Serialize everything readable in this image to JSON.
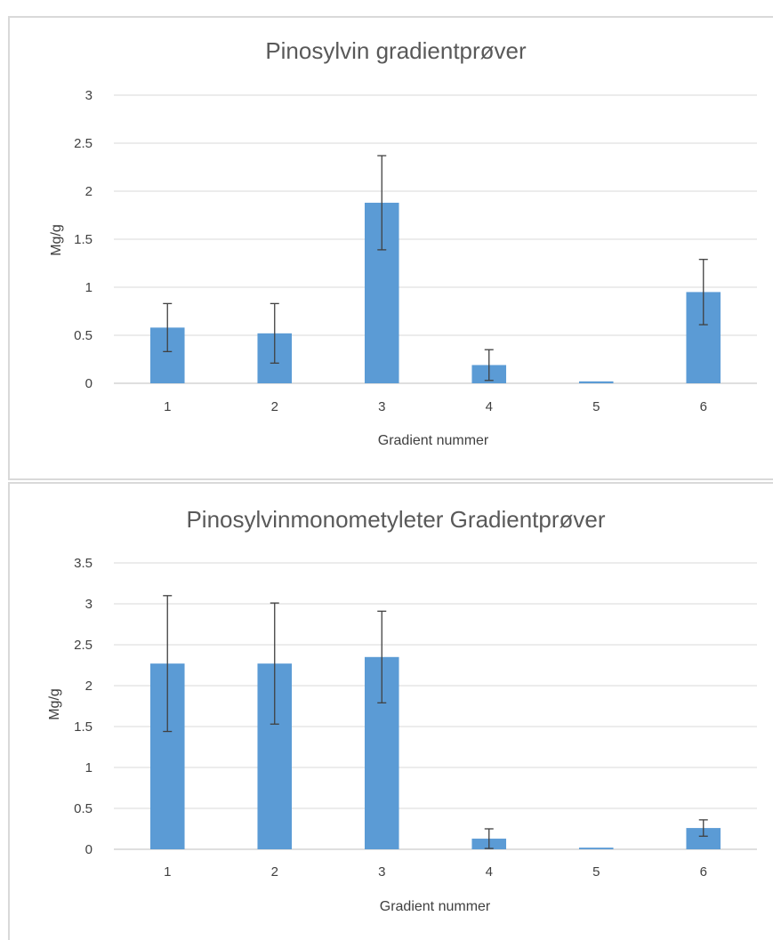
{
  "chart_data": [
    {
      "type": "bar",
      "title": "Pinosylvin gradientprøver",
      "xlabel": "Gradient nummer",
      "ylabel": "Mg/g",
      "categories": [
        "1",
        "2",
        "3",
        "4",
        "5",
        "6"
      ],
      "series": [
        {
          "values": [
            0.58,
            0.52,
            1.88,
            0.19,
            0.02,
            0.95
          ],
          "error": [
            0.25,
            0.31,
            0.49,
            0.16,
            0.0,
            0.34
          ]
        }
      ],
      "yticks": [
        "0",
        "0.5",
        "1",
        "1.5",
        "2",
        "2.5",
        "3"
      ],
      "ylim": [
        0,
        3
      ],
      "grid": true,
      "color": "#5b9bd5"
    },
    {
      "type": "bar",
      "title": "Pinosylvinmonometyleter Gradientprøver",
      "xlabel": "Gradient nummer",
      "ylabel": "Mg/g",
      "categories": [
        "1",
        "2",
        "3",
        "4",
        "5",
        "6"
      ],
      "series": [
        {
          "values": [
            2.27,
            2.27,
            2.35,
            0.13,
            0.02,
            0.26
          ],
          "error": [
            0.83,
            0.74,
            0.56,
            0.12,
            0.0,
            0.1
          ]
        }
      ],
      "yticks": [
        "0",
        "0.5",
        "1",
        "1.5",
        "2",
        "2.5",
        "3",
        "3.5"
      ],
      "ylim": [
        0,
        3.5
      ],
      "grid": true,
      "color": "#5b9bd5"
    }
  ]
}
